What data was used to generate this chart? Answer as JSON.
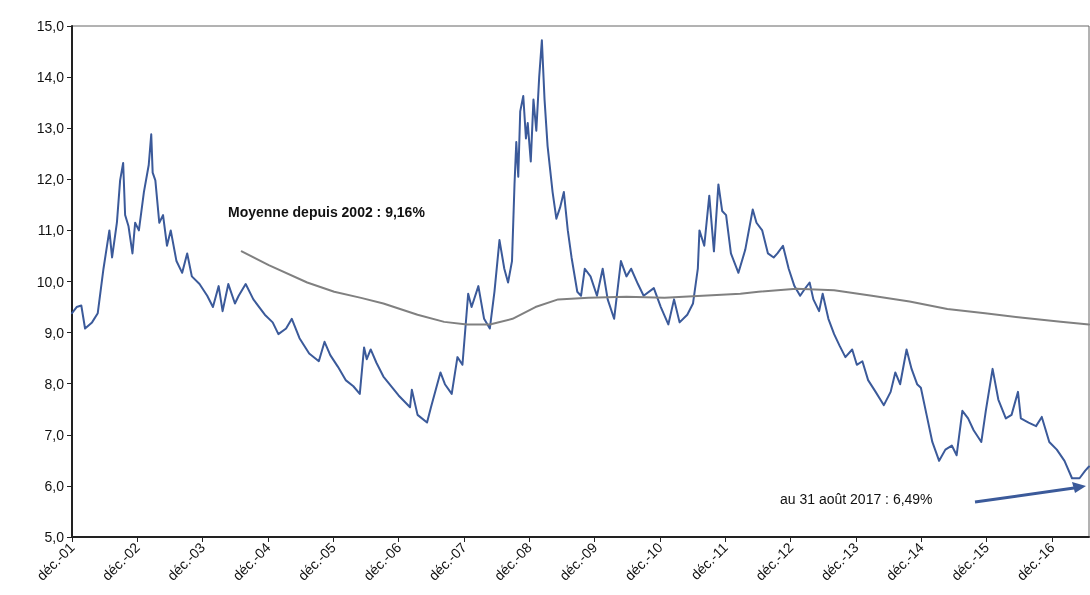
{
  "chart_data": {
    "type": "line",
    "xlim": [
      "2001-12-01",
      "2017-06-26"
    ],
    "ylim": [
      5,
      15
    ],
    "xticks": [
      {
        "value": "2001-12-01",
        "label": "déc.-01"
      },
      {
        "value": "2002-12-01",
        "label": "déc.-02"
      },
      {
        "value": "2003-12-01",
        "label": "déc.-03"
      },
      {
        "value": "2004-12-01",
        "label": "déc.-04"
      },
      {
        "value": "2005-12-01",
        "label": "déc.-05"
      },
      {
        "value": "2006-12-01",
        "label": "déc.-06"
      },
      {
        "value": "2007-12-01",
        "label": "déc.-07"
      },
      {
        "value": "2008-12-01",
        "label": "déc.-08"
      },
      {
        "value": "2009-12-01",
        "label": "déc.-09"
      },
      {
        "value": "2010-12-01",
        "label": "déc.-10"
      },
      {
        "value": "2011-12-01",
        "label": "déc.-11"
      },
      {
        "value": "2012-12-01",
        "label": "déc.-12"
      },
      {
        "value": "2013-12-01",
        "label": "déc.-13"
      },
      {
        "value": "2014-12-01",
        "label": "déc.-14"
      },
      {
        "value": "2015-12-01",
        "label": "déc.-15"
      },
      {
        "value": "2016-12-01",
        "label": "déc.-16"
      }
    ],
    "yticks": [
      {
        "value": 5,
        "label": "5,0"
      },
      {
        "value": 6,
        "label": "6,0"
      },
      {
        "value": 7,
        "label": "7,0"
      },
      {
        "value": 8,
        "label": "8,0"
      },
      {
        "value": 9,
        "label": "9,0"
      },
      {
        "value": 10,
        "label": "10,0"
      },
      {
        "value": 11,
        "label": "11,0"
      },
      {
        "value": 12,
        "label": "12,0"
      },
      {
        "value": 13,
        "label": "13,0"
      },
      {
        "value": 14,
        "label": "14,0"
      },
      {
        "value": 15,
        "label": "15,0"
      }
    ],
    "grid": false,
    "marker": "none",
    "line_style": "solid",
    "annotations": [
      "Moyenne depuis 2002 : 9,16%",
      "au 31 août 2017 : 6,49%"
    ],
    "series": [
      {
        "color": "#3b5a9a",
        "x": [
          "2001-12-01",
          "2001-12-27",
          "2002-01-22",
          "2002-02-12",
          "2002-03-23",
          "2002-04-24",
          "2002-05-26",
          "2002-06-28",
          "2002-07-13",
          "2002-08-09",
          "2002-08-27",
          "2002-09-13",
          "2002-09-24",
          "2002-10-13",
          "2002-11-04",
          "2002-11-19",
          "2002-12-10",
          "2003-01-07",
          "2003-02-03",
          "2003-02-17",
          "2003-02-25",
          "2003-03-12",
          "2003-04-03",
          "2003-04-24",
          "2003-05-16",
          "2003-06-06",
          "2003-07-08",
          "2003-08-09",
          "2003-09-06",
          "2003-10-02",
          "2003-11-14",
          "2003-12-27",
          "2004-01-28",
          "2004-02-29",
          "2004-03-22",
          "2004-04-23",
          "2004-05-30",
          "2004-06-20",
          "2004-07-29",
          "2004-09-10",
          "2004-11-13",
          "2004-12-27",
          "2005-01-28",
          "2005-03-12",
          "2005-04-13",
          "2005-05-26",
          "2005-07-19",
          "2005-09-11",
          "2005-10-13",
          "2005-11-14",
          "2005-12-27",
          "2006-02-08",
          "2006-03-23",
          "2006-04-28",
          "2006-05-22",
          "2006-06-06",
          "2006-06-28",
          "2006-07-30",
          "2006-09-07",
          "2006-12-01",
          "2007-02-03",
          "2007-02-13",
          "2007-03-17",
          "2007-05-09",
          "2007-05-31",
          "2007-07-23",
          "2007-08-17",
          "2007-09-24",
          "2007-10-26",
          "2007-11-23",
          "2007-12-25",
          "2008-01-13",
          "2008-02-20",
          "2008-03-23",
          "2008-04-24",
          "2008-05-20",
          "2008-06-17",
          "2008-07-14",
          "2008-08-04",
          "2008-08-26",
          "2008-09-09",
          "2008-09-19",
          "2008-09-30",
          "2008-10-11",
          "2008-10-28",
          "2008-11-12",
          "2008-11-22",
          "2008-12-09",
          "2008-12-24",
          "2009-01-09",
          "2009-01-25",
          "2009-02-09",
          "2009-02-24",
          "2009-03-13",
          "2009-04-10",
          "2009-05-01",
          "2009-05-22",
          "2009-06-12",
          "2009-07-04",
          "2009-07-25",
          "2009-08-26",
          "2009-09-16",
          "2009-10-07",
          "2009-11-08",
          "2009-12-14",
          "2010-01-15",
          "2010-02-12",
          "2010-03-20",
          "2010-04-27",
          "2010-05-28",
          "2010-06-23",
          "2010-07-31",
          "2010-09-01",
          "2010-10-28",
          "2010-12-06",
          "2011-01-17",
          "2011-02-18",
          "2011-03-21",
          "2011-05-03",
          "2011-06-04",
          "2011-07-01",
          "2011-07-10",
          "2011-08-06",
          "2011-09-03",
          "2011-09-29",
          "2011-10-24",
          "2011-11-14",
          "2011-12-06",
          "2012-01-02",
          "2012-02-13",
          "2012-03-22",
          "2012-05-03",
          "2012-05-24",
          "2012-06-25",
          "2012-07-27",
          "2012-08-28",
          "2012-09-18",
          "2012-10-19",
          "2012-11-20",
          "2012-12-22",
          "2013-01-23",
          "2013-02-13",
          "2013-03-17",
          "2013-04-07",
          "2013-05-09",
          "2013-05-29",
          "2013-06-30",
          "2013-08-01",
          "2013-09-01",
          "2013-10-03",
          "2013-11-10",
          "2013-12-06",
          "2014-01-06",
          "2014-02-07",
          "2014-03-21",
          "2014-05-06",
          "2014-06-13",
          "2014-07-09",
          "2014-08-05",
          "2014-09-10",
          "2014-10-08",
          "2014-11-08",
          "2014-11-29",
          "2014-12-31",
          "2015-02-01",
          "2015-03-11",
          "2015-04-15",
          "2015-05-21",
          "2015-06-17",
          "2015-07-19",
          "2015-08-20",
          "2015-09-20",
          "2015-11-02",
          "2015-11-27",
          "2016-01-04",
          "2016-02-05",
          "2016-03-18",
          "2016-04-19",
          "2016-05-25",
          "2016-06-10",
          "2016-07-23",
          "2016-09-03",
          "2016-10-05",
          "2016-11-16",
          "2016-12-28",
          "2017-02-09",
          "2017-03-23",
          "2017-05-04",
          "2017-06-05",
          "2017-06-26"
        ],
        "values": [
          9.38,
          9.5,
          9.53,
          9.08,
          9.2,
          9.38,
          10.25,
          11.0,
          10.47,
          11.15,
          11.98,
          12.32,
          11.3,
          11.08,
          10.55,
          11.15,
          11.0,
          11.75,
          12.28,
          12.88,
          12.13,
          11.98,
          11.15,
          11.3,
          10.7,
          11.0,
          10.4,
          10.17,
          10.55,
          10.1,
          9.95,
          9.72,
          9.5,
          9.91,
          9.42,
          9.95,
          9.57,
          9.72,
          9.95,
          9.65,
          9.35,
          9.2,
          8.97,
          9.08,
          9.27,
          8.89,
          8.59,
          8.44,
          8.82,
          8.56,
          8.33,
          8.07,
          7.95,
          7.8,
          8.71,
          8.48,
          8.67,
          8.41,
          8.14,
          7.77,
          7.54,
          7.88,
          7.39,
          7.24,
          7.54,
          8.22,
          7.99,
          7.8,
          8.52,
          8.37,
          9.76,
          9.5,
          9.91,
          9.27,
          9.08,
          9.8,
          10.81,
          10.25,
          9.98,
          10.4,
          11.9,
          12.73,
          12.05,
          13.33,
          13.63,
          12.8,
          13.1,
          12.35,
          13.56,
          12.95,
          14.0,
          14.72,
          13.56,
          12.65,
          11.75,
          11.23,
          11.45,
          11.75,
          11.0,
          10.47,
          9.8,
          9.72,
          10.25,
          10.1,
          9.72,
          10.25,
          9.65,
          9.27,
          10.4,
          10.1,
          10.25,
          9.95,
          9.72,
          9.87,
          9.5,
          9.16,
          9.65,
          9.2,
          9.35,
          9.57,
          10.25,
          11.0,
          10.7,
          11.68,
          10.59,
          11.9,
          11.38,
          11.3,
          10.55,
          10.17,
          10.62,
          11.41,
          11.15,
          11.0,
          10.55,
          10.47,
          10.55,
          10.7,
          10.25,
          9.91,
          9.72,
          9.83,
          9.98,
          9.65,
          9.42,
          9.76,
          9.27,
          8.97,
          8.74,
          8.52,
          8.67,
          8.37,
          8.44,
          8.07,
          7.84,
          7.58,
          7.84,
          8.22,
          7.99,
          8.67,
          8.29,
          7.99,
          7.92,
          7.39,
          6.86,
          6.49,
          6.71,
          6.79,
          6.6,
          7.47,
          7.32,
          7.09,
          6.86,
          7.47,
          8.29,
          7.69,
          7.32,
          7.39,
          7.84,
          7.32,
          7.24,
          7.17,
          7.35,
          6.86,
          6.71,
          6.49,
          6.15,
          6.15,
          6.3,
          6.38
        ]
      },
      {
        "color": "#808080",
        "x": [
          "2004-07-07",
          "2004-12-05",
          "2005-07-08",
          "2005-12-06",
          "2006-05-05",
          "2006-09-07",
          "2007-03-17",
          "2007-08-13",
          "2007-12-18",
          "2008-04-24",
          "2008-08-29",
          "2009-01-04",
          "2009-05-11",
          "2009-10-28",
          "2010-05-28",
          "2010-12-27",
          "2011-07-27",
          "2012-02-24",
          "2012-06-04",
          "2013-01-02",
          "2013-08-01",
          "2014-02-28",
          "2014-09-27",
          "2015-04-26",
          "2015-11-23",
          "2016-06-21",
          "2017-01-19",
          "2017-06-26"
        ],
        "values": [
          10.59,
          10.32,
          9.98,
          9.8,
          9.68,
          9.57,
          9.35,
          9.21,
          9.16,
          9.16,
          9.27,
          9.5,
          9.65,
          9.68,
          9.7,
          9.68,
          9.72,
          9.76,
          9.8,
          9.86,
          9.83,
          9.72,
          9.61,
          9.46,
          9.38,
          9.29,
          9.21,
          9.16
        ]
      }
    ]
  }
}
